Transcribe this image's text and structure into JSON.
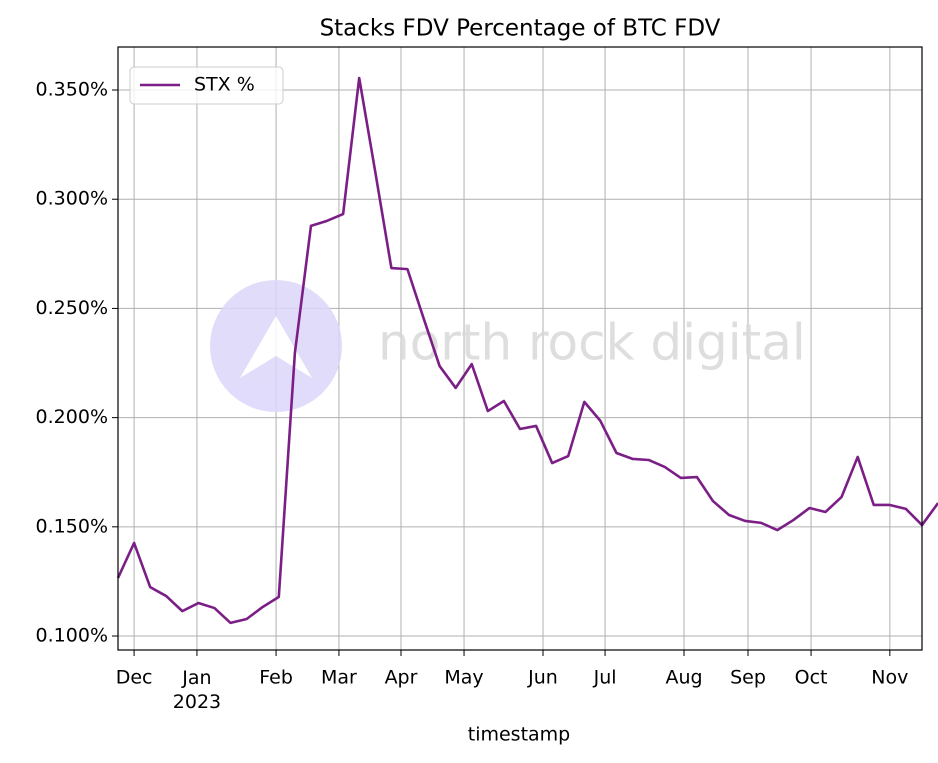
{
  "chart_data": {
    "type": "line",
    "title": "Stacks FDV Percentage of BTC FDV",
    "x_label": "timestamp",
    "watermark": "north rock digital",
    "series": [
      {
        "name": "STX %",
        "color": "#7b1f86",
        "values": [
          0.1266,
          0.1426,
          0.1224,
          0.1183,
          0.1114,
          0.1151,
          0.1128,
          0.106,
          0.1078,
          0.1133,
          0.1179,
          0.2296,
          0.2878,
          0.2901,
          0.2932,
          0.3555,
          0.3125,
          0.2685,
          0.268,
          0.2456,
          0.2236,
          0.2136,
          0.2245,
          0.203,
          0.2076,
          0.1948,
          0.1962,
          0.1792,
          0.1824,
          0.2072,
          0.1985,
          0.1838,
          0.1811,
          0.1806,
          0.1774,
          0.1724,
          0.1728,
          0.1618,
          0.1554,
          0.1527,
          0.1518,
          0.1485,
          0.1531,
          0.1586,
          0.1568,
          0.1637,
          0.182,
          0.16,
          0.16,
          0.1582,
          0.1508,
          0.1609
        ]
      }
    ],
    "xlim": [
      0,
      50
    ],
    "xticks": [
      {
        "value": 1.0,
        "label": "Dec"
      },
      {
        "value": 4.91,
        "label": "Jan\n2023"
      },
      {
        "value": 9.83,
        "label": "Feb"
      },
      {
        "value": 13.74,
        "label": "Mar"
      },
      {
        "value": 17.6,
        "label": "Apr"
      },
      {
        "value": 21.52,
        "label": "May"
      },
      {
        "value": 26.43,
        "label": "Jun"
      },
      {
        "value": 30.29,
        "label": "Jul"
      },
      {
        "value": 35.2,
        "label": "Aug"
      },
      {
        "value": 39.18,
        "label": "Sep"
      },
      {
        "value": 43.1,
        "label": "Oct"
      },
      {
        "value": 48.0,
        "label": "Nov"
      }
    ],
    "ylim": [
      0.0936,
      0.3697
    ],
    "yticks": [
      {
        "value": 0.1,
        "label": "0.100%"
      },
      {
        "value": 0.15,
        "label": "0.150%"
      },
      {
        "value": 0.2,
        "label": "0.200%"
      },
      {
        "value": 0.25,
        "label": "0.250%"
      },
      {
        "value": 0.3,
        "label": "0.300%"
      },
      {
        "value": 0.35,
        "label": "0.350%"
      }
    ],
    "grid": true,
    "legend": "upper left"
  }
}
